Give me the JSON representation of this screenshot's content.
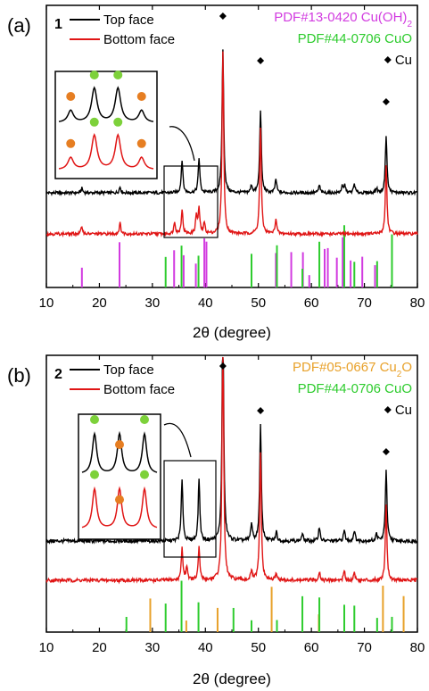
{
  "chart_data": [
    {
      "type": "line",
      "panel_label": "(a)",
      "sample_label": "1",
      "xlabel": "2θ (degree)",
      "xlim": [
        10,
        80
      ],
      "xticks": [
        "10",
        "20",
        "30",
        "40",
        "50",
        "60",
        "70",
        "80"
      ],
      "legend_placement": "top-left",
      "legend": [
        "Top face",
        "Bottom face"
      ],
      "reference_labels": [
        {
          "text": "PDF#13-0420 Cu(OH)",
          "sub": "2",
          "color": "#d23be0"
        },
        {
          "text": "PDF#44-0706 CuO",
          "sub": "",
          "color": "#2ecc2e"
        },
        {
          "text": "Cu",
          "sub": "",
          "color": "#000000",
          "marker": "diamond"
        }
      ],
      "series": [
        {
          "name": "Top face",
          "color": "#000000",
          "baseline": 0.36,
          "peaks": [
            [
              16.7,
              0.03
            ],
            [
              23.9,
              0.04
            ],
            [
              35.6,
              0.22
            ],
            [
              38.8,
              0.23
            ],
            [
              43.3,
              0.95
            ],
            [
              48.7,
              0.05
            ],
            [
              50.4,
              0.55
            ],
            [
              53.3,
              0.09
            ],
            [
              61.5,
              0.05
            ],
            [
              65.8,
              0.04
            ],
            [
              66.3,
              0.05
            ],
            [
              68.1,
              0.06
            ],
            [
              72.3,
              0.03
            ],
            [
              74.1,
              0.38
            ]
          ]
        },
        {
          "name": "Bottom face",
          "color": "#e01515",
          "baseline": 0.2,
          "peaks": [
            [
              16.7,
              0.05
            ],
            [
              23.9,
              0.07
            ],
            [
              34.2,
              0.08
            ],
            [
              35.6,
              0.16
            ],
            [
              38.3,
              0.12
            ],
            [
              38.8,
              0.16
            ],
            [
              39.8,
              0.07
            ],
            [
              43.3,
              1.2
            ],
            [
              50.4,
              0.7
            ],
            [
              53.3,
              0.1
            ],
            [
              74.1,
              0.45
            ]
          ]
        }
      ],
      "reference_bars": [
        {
          "name": "PDF#13-0420 Cu(OH)2",
          "color": "#d23be0",
          "positions": [
            16.7,
            23.8,
            34.1,
            35.9,
            38.2,
            39.8,
            40.2,
            53.3,
            56.2,
            58.4,
            59.6,
            62.5,
            63.1,
            64.8,
            65.9,
            67.4,
            69.6,
            72.0
          ]
        },
        {
          "name": "PDF#44-0706 CuO",
          "color": "#2ecc2e",
          "positions": [
            32.5,
            35.5,
            38.7,
            48.7,
            53.5,
            58.3,
            61.5,
            66.2,
            68.1,
            72.4,
            75.2
          ]
        }
      ],
      "cu_marker_positions": [
        43.3,
        50.4,
        74.1
      ],
      "inset": {
        "peaks": 4,
        "dot_colors": [
          "#e67e22",
          "#7dd13a",
          "#7dd13a",
          "#e67e22"
        ]
      }
    },
    {
      "type": "line",
      "panel_label": "(b)",
      "sample_label": "2",
      "xlabel": "2θ (degree)",
      "xlim": [
        10,
        80
      ],
      "xticks": [
        "10",
        "20",
        "30",
        "40",
        "50",
        "60",
        "70",
        "80"
      ],
      "legend_placement": "top-left",
      "legend": [
        "Top face",
        "Bottom face"
      ],
      "reference_labels": [
        {
          "text": "PDF#05-0667 Cu",
          "sub": "2",
          "tail": "O",
          "color": "#e8a12a"
        },
        {
          "text": "PDF#44-0706 CuO",
          "sub": "",
          "color": "#2ecc2e"
        },
        {
          "text": "Cu",
          "sub": "",
          "color": "#000000",
          "marker": "diamond"
        }
      ],
      "series": [
        {
          "name": "Top face",
          "color": "#000000",
          "baseline": 0.38,
          "peaks": [
            [
              35.6,
              0.35
            ],
            [
              38.8,
              0.35
            ],
            [
              43.3,
              1.3
            ],
            [
              48.7,
              0.1
            ],
            [
              50.4,
              0.65
            ],
            [
              53.4,
              0.05
            ],
            [
              58.3,
              0.04
            ],
            [
              61.5,
              0.08
            ],
            [
              66.2,
              0.06
            ],
            [
              68.1,
              0.06
            ],
            [
              72.3,
              0.04
            ],
            [
              74.1,
              0.4
            ]
          ]
        },
        {
          "name": "Bottom face",
          "color": "#e01515",
          "baseline": 0.22,
          "peaks": [
            [
              35.6,
              0.18
            ],
            [
              36.5,
              0.08
            ],
            [
              38.8,
              0.18
            ],
            [
              43.3,
              1.4
            ],
            [
              48.7,
              0.05
            ],
            [
              50.4,
              0.72
            ],
            [
              53.4,
              0.04
            ],
            [
              61.5,
              0.05
            ],
            [
              66.2,
              0.05
            ],
            [
              68.1,
              0.04
            ],
            [
              74.1,
              0.42
            ]
          ]
        }
      ],
      "reference_bars": [
        {
          "name": "PDF#05-0667 Cu2O",
          "color": "#e8a12a",
          "positions": [
            29.6,
            36.4,
            42.3,
            52.5,
            61.4,
            73.5,
            77.4
          ]
        },
        {
          "name": "PDF#44-0706 CuO",
          "color": "#2ecc2e",
          "positions": [
            25.1,
            32.5,
            35.5,
            38.7,
            45.3,
            48.7,
            53.5,
            58.3,
            61.5,
            66.2,
            68.1,
            72.4,
            75.2
          ]
        }
      ],
      "cu_marker_positions": [
        43.3,
        50.4,
        74.1
      ],
      "inset": {
        "peaks": 3,
        "dot_colors": [
          "#7dd13a",
          "#e67e22",
          "#7dd13a"
        ]
      }
    }
  ]
}
